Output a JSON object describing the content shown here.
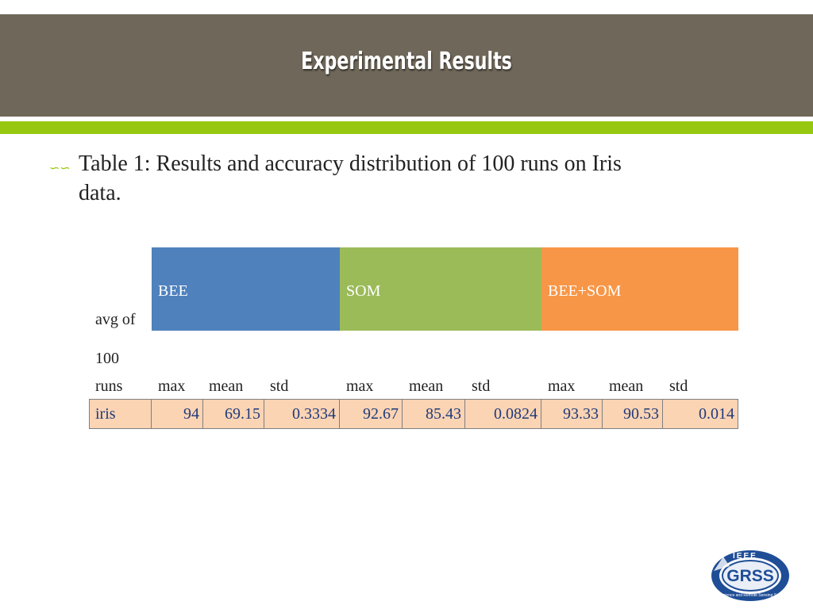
{
  "title": "Experimental Results",
  "bullet": {
    "icon": "curl-bullet-icon",
    "text_line1": "Table 1: Results and accuracy distribution of 100 runs on Iris",
    "text_line2": "data."
  },
  "table": {
    "row_header_lines": [
      "avg of",
      "100",
      "runs"
    ],
    "groups": [
      "BEE",
      "SOM",
      "BEE+SOM"
    ],
    "group_colors": [
      "#4f81bd",
      "#9bbb59",
      "#f79646"
    ],
    "sub_headers": [
      "max",
      "mean",
      "std",
      "max",
      "mean",
      "std",
      "max",
      "mean",
      "std"
    ],
    "row": {
      "label": "iris",
      "values": [
        "94",
        "69.15",
        "0.3334",
        "92.67",
        "85.43",
        "0.0824",
        "93.33",
        "90.53",
        "0.014"
      ]
    },
    "row_bg_color": "#fbd4b4"
  },
  "colors": {
    "title_bar": "#6f6759",
    "accent_stripe": "#97c811"
  },
  "logo": {
    "text": "GRSS",
    "arc_text": "IEEE",
    "ring_text": "Geoscience and Remote Sensing Society"
  }
}
